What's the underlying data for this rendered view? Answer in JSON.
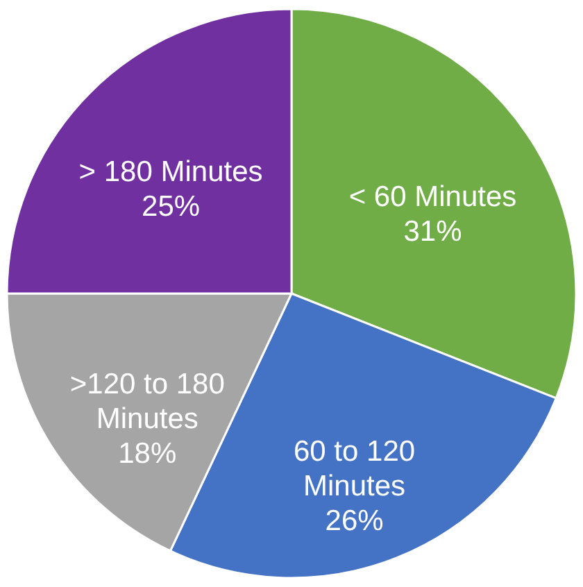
{
  "chart_data": {
    "type": "pie",
    "categories": [
      "< 60 Minutes",
      "60 to 120 Minutes",
      ">120 to 180 Minutes",
      "> 180 Minutes"
    ],
    "values": [
      31,
      26,
      18,
      25
    ],
    "colors": [
      "#70ad47",
      "#4472c4",
      "#a5a5a5",
      "#7030a0"
    ],
    "value_labels": [
      "31%",
      "26%",
      "18%",
      "25%"
    ]
  }
}
